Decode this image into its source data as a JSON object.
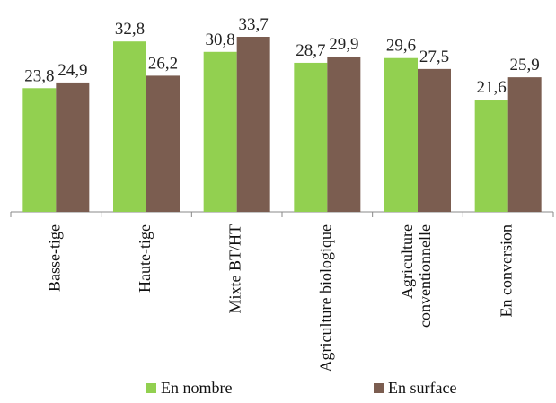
{
  "chart_data": {
    "type": "bar",
    "categories": [
      [
        "Basse-tige"
      ],
      [
        "Haute-tige"
      ],
      [
        "Mixte BT/HT"
      ],
      [
        "Agriculture biologique"
      ],
      [
        "Agriculture",
        "conventionnelle"
      ],
      [
        "En conversion"
      ]
    ],
    "series": [
      {
        "name": "En nombre",
        "color": "#92D050",
        "values": [
          23.8,
          32.8,
          30.8,
          28.7,
          29.6,
          21.6
        ],
        "labels": [
          "23,8",
          "32,8",
          "30,8",
          "28,7",
          "29,6",
          "21,6"
        ]
      },
      {
        "name": "En surface",
        "color": "#7B5D50",
        "values": [
          24.9,
          26.2,
          33.7,
          29.9,
          27.5,
          25.9
        ],
        "labels": [
          "24,9",
          "26,2",
          "33,7",
          "29,9",
          "27,5",
          "25,9"
        ]
      }
    ],
    "ylim": [
      0,
      35
    ],
    "legend": "bottom",
    "grid": false
  }
}
